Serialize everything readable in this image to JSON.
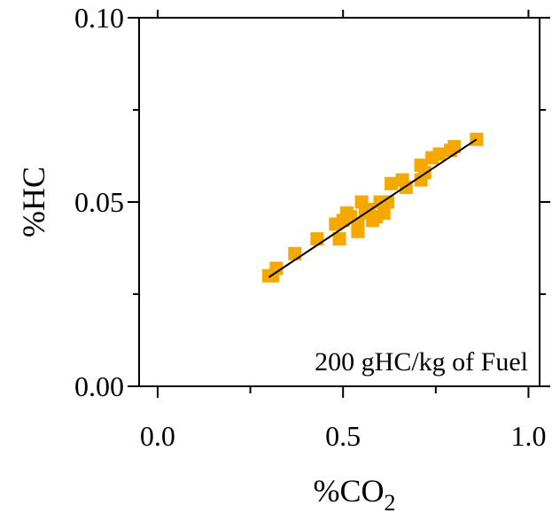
{
  "chart_data": {
    "type": "scatter",
    "xlabel_main": "%CO",
    "xlabel_sub": "2",
    "ylabel": "%HC",
    "xlim": [
      -0.05,
      1.03
    ],
    "ylim": [
      0.0,
      0.1
    ],
    "xticks": [
      {
        "value": 0.0,
        "label": "0.0"
      },
      {
        "value": 0.5,
        "label": "0.5"
      },
      {
        "value": 1.0,
        "label": "1.0"
      }
    ],
    "xminor": [
      0.25,
      0.75
    ],
    "yticks": [
      {
        "value": 0.0,
        "label": "0.00"
      },
      {
        "value": 0.05,
        "label": "0.05"
      },
      {
        "value": 0.1,
        "label": "0.10"
      }
    ],
    "yminor": [
      0.025,
      0.075
    ],
    "annotation": "200 gHC/kg of Fuel",
    "marker_color": "#f5a800",
    "line_color": "#000000",
    "series": [
      {
        "points": [
          [
            0.3,
            0.03
          ],
          [
            0.32,
            0.032
          ],
          [
            0.31,
            0.03
          ],
          [
            0.37,
            0.036
          ],
          [
            0.43,
            0.04
          ],
          [
            0.49,
            0.04
          ],
          [
            0.48,
            0.044
          ],
          [
            0.5,
            0.045
          ],
          [
            0.51,
            0.047
          ],
          [
            0.52,
            0.046
          ],
          [
            0.54,
            0.044
          ],
          [
            0.54,
            0.042
          ],
          [
            0.55,
            0.05
          ],
          [
            0.56,
            0.047
          ],
          [
            0.57,
            0.048
          ],
          [
            0.58,
            0.045
          ],
          [
            0.59,
            0.046
          ],
          [
            0.6,
            0.05
          ],
          [
            0.61,
            0.047
          ],
          [
            0.62,
            0.05
          ],
          [
            0.63,
            0.055
          ],
          [
            0.66,
            0.056
          ],
          [
            0.67,
            0.054
          ],
          [
            0.71,
            0.06
          ],
          [
            0.71,
            0.056
          ],
          [
            0.72,
            0.058
          ],
          [
            0.74,
            0.062
          ],
          [
            0.76,
            0.063
          ],
          [
            0.79,
            0.064
          ],
          [
            0.8,
            0.065
          ],
          [
            0.86,
            0.067
          ]
        ]
      }
    ],
    "fit_line": {
      "x": [
        0.3,
        0.86
      ],
      "y": [
        0.0296,
        0.067
      ]
    }
  }
}
